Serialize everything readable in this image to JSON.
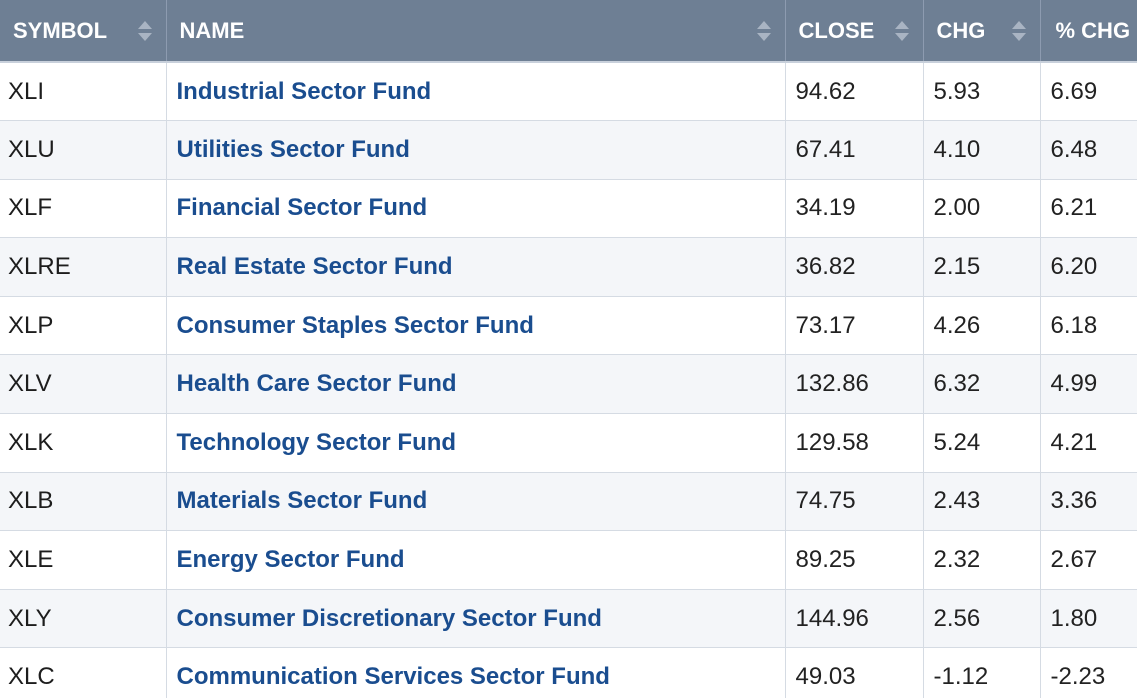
{
  "columns": {
    "symbol": "SYMBOL",
    "name": "NAME",
    "close": "CLOSE",
    "chg": "CHG",
    "pct_chg": "% CHG"
  },
  "colors": {
    "header_bg": "#6e7f94",
    "link": "#1a4d8f",
    "row_alt": "#f4f6f9"
  },
  "rows": [
    {
      "symbol": "XLI",
      "name": "Industrial Sector Fund",
      "close": "94.62",
      "chg": "5.93",
      "pct_chg": "6.69"
    },
    {
      "symbol": "XLU",
      "name": "Utilities Sector Fund",
      "close": "67.41",
      "chg": "4.10",
      "pct_chg": "6.48"
    },
    {
      "symbol": "XLF",
      "name": "Financial Sector Fund",
      "close": "34.19",
      "chg": "2.00",
      "pct_chg": "6.21"
    },
    {
      "symbol": "XLRE",
      "name": "Real Estate Sector Fund",
      "close": "36.82",
      "chg": "2.15",
      "pct_chg": "6.20"
    },
    {
      "symbol": "XLP",
      "name": "Consumer Staples Sector Fund",
      "close": "73.17",
      "chg": "4.26",
      "pct_chg": "6.18"
    },
    {
      "symbol": "XLV",
      "name": "Health Care Sector Fund",
      "close": "132.86",
      "chg": "6.32",
      "pct_chg": "4.99"
    },
    {
      "symbol": "XLK",
      "name": "Technology Sector Fund",
      "close": "129.58",
      "chg": "5.24",
      "pct_chg": "4.21"
    },
    {
      "symbol": "XLB",
      "name": "Materials Sector Fund",
      "close": "74.75",
      "chg": "2.43",
      "pct_chg": "3.36"
    },
    {
      "symbol": "XLE",
      "name": "Energy Sector Fund",
      "close": "89.25",
      "chg": "2.32",
      "pct_chg": "2.67"
    },
    {
      "symbol": "XLY",
      "name": "Consumer Discretionary Sector Fund",
      "close": "144.96",
      "chg": "2.56",
      "pct_chg": "1.80"
    },
    {
      "symbol": "XLC",
      "name": "Communication Services Sector Fund",
      "close": "49.03",
      "chg": "-1.12",
      "pct_chg": "-2.23"
    }
  ]
}
